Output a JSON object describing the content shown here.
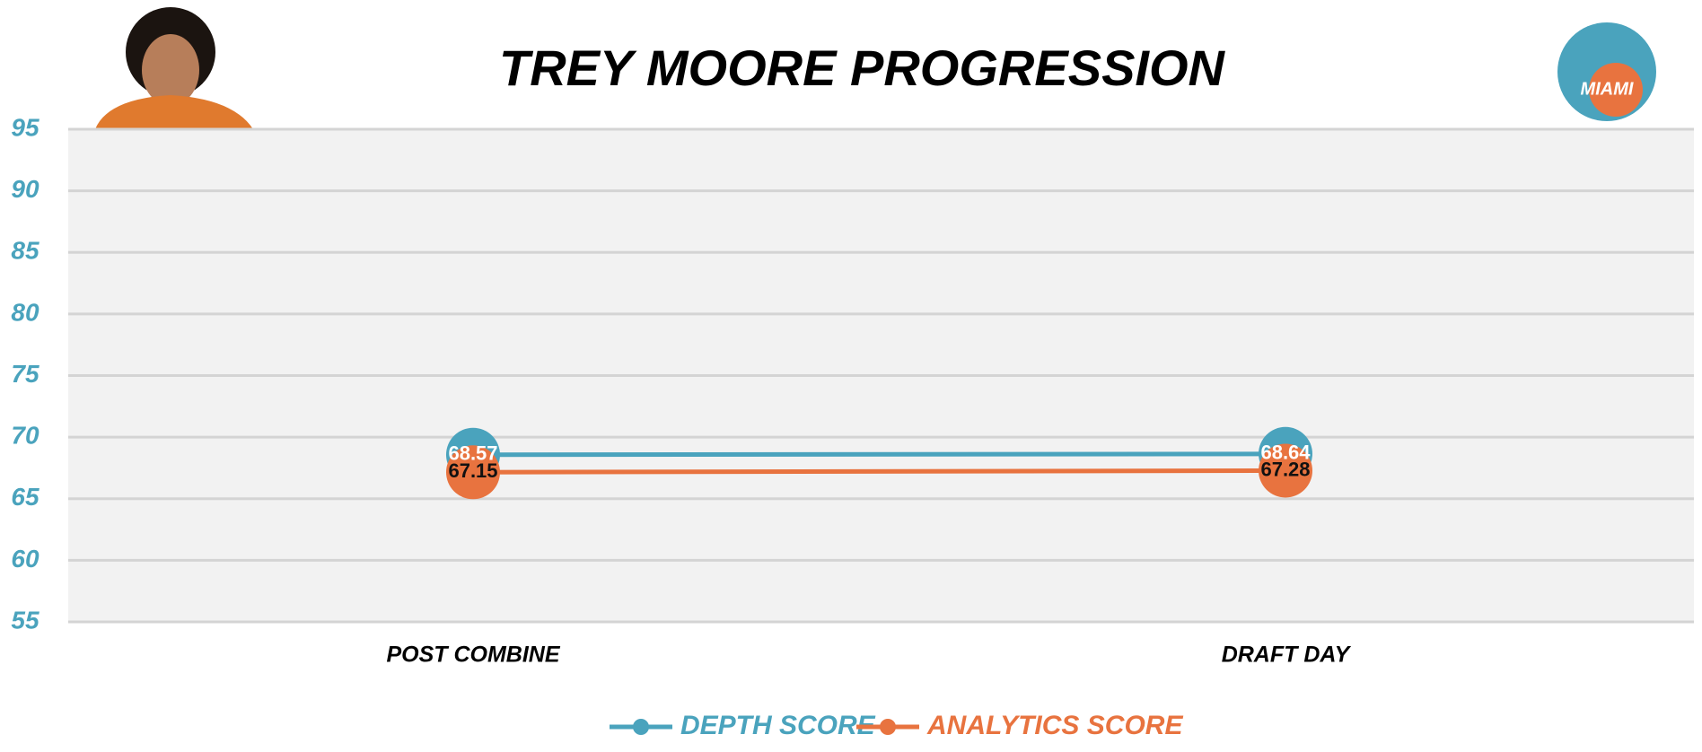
{
  "chart_data": {
    "type": "line",
    "title": "TREY MOORE PROGRESSION",
    "categories": [
      "POST COMBINE",
      "DRAFT DAY"
    ],
    "series": [
      {
        "name": "DEPTH SCORE",
        "color": "#4aa3bd",
        "values": [
          68.57,
          68.64
        ]
      },
      {
        "name": "ANALYTICS SCORE",
        "color": "#e8733f",
        "values": [
          67.15,
          67.28
        ]
      }
    ],
    "ylim": [
      55,
      95
    ],
    "yticks": [
      55,
      60,
      65,
      70,
      75,
      80,
      85,
      90,
      95
    ],
    "grid": true,
    "legend": "bottom"
  }
}
